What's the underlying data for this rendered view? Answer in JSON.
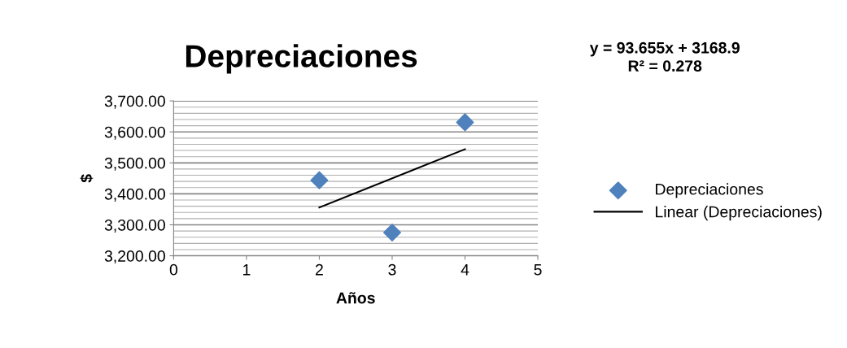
{
  "chart_data": {
    "type": "scatter",
    "title": "Depreciaciones",
    "xlabel": "Años",
    "ylabel": "$",
    "annotations": [
      "y = 93.655x + 3168.9\nR² = 0.278"
    ],
    "series": [
      {
        "name": "Depreciaciones",
        "color": "#4f81bd",
        "x": [
          2,
          3,
          4
        ],
        "values": [
          3444,
          3275,
          3631
        ],
        "marker": "diamond"
      },
      {
        "name": "Linear (Depreciaciones)",
        "type": "line",
        "color": "#000000",
        "x": [
          2,
          4
        ],
        "values": [
          3356,
          3544
        ],
        "marker": "none",
        "line_style": "solid"
      }
    ],
    "xlim": [
      0,
      5
    ],
    "xticks": [
      0,
      1,
      2,
      3,
      4,
      5
    ],
    "ylim": [
      3200,
      3700
    ],
    "yticks": [
      {
        "value": 3200,
        "label": "3,200.00"
      },
      {
        "value": 3300,
        "label": "3,300.00"
      },
      {
        "value": 3400,
        "label": "3,400.00"
      },
      {
        "value": 3500,
        "label": "3,500.00"
      },
      {
        "value": 3600,
        "label": "3,600.00"
      },
      {
        "value": 3700,
        "label": "3,700.00"
      }
    ],
    "grid": "y",
    "legend": "right"
  }
}
